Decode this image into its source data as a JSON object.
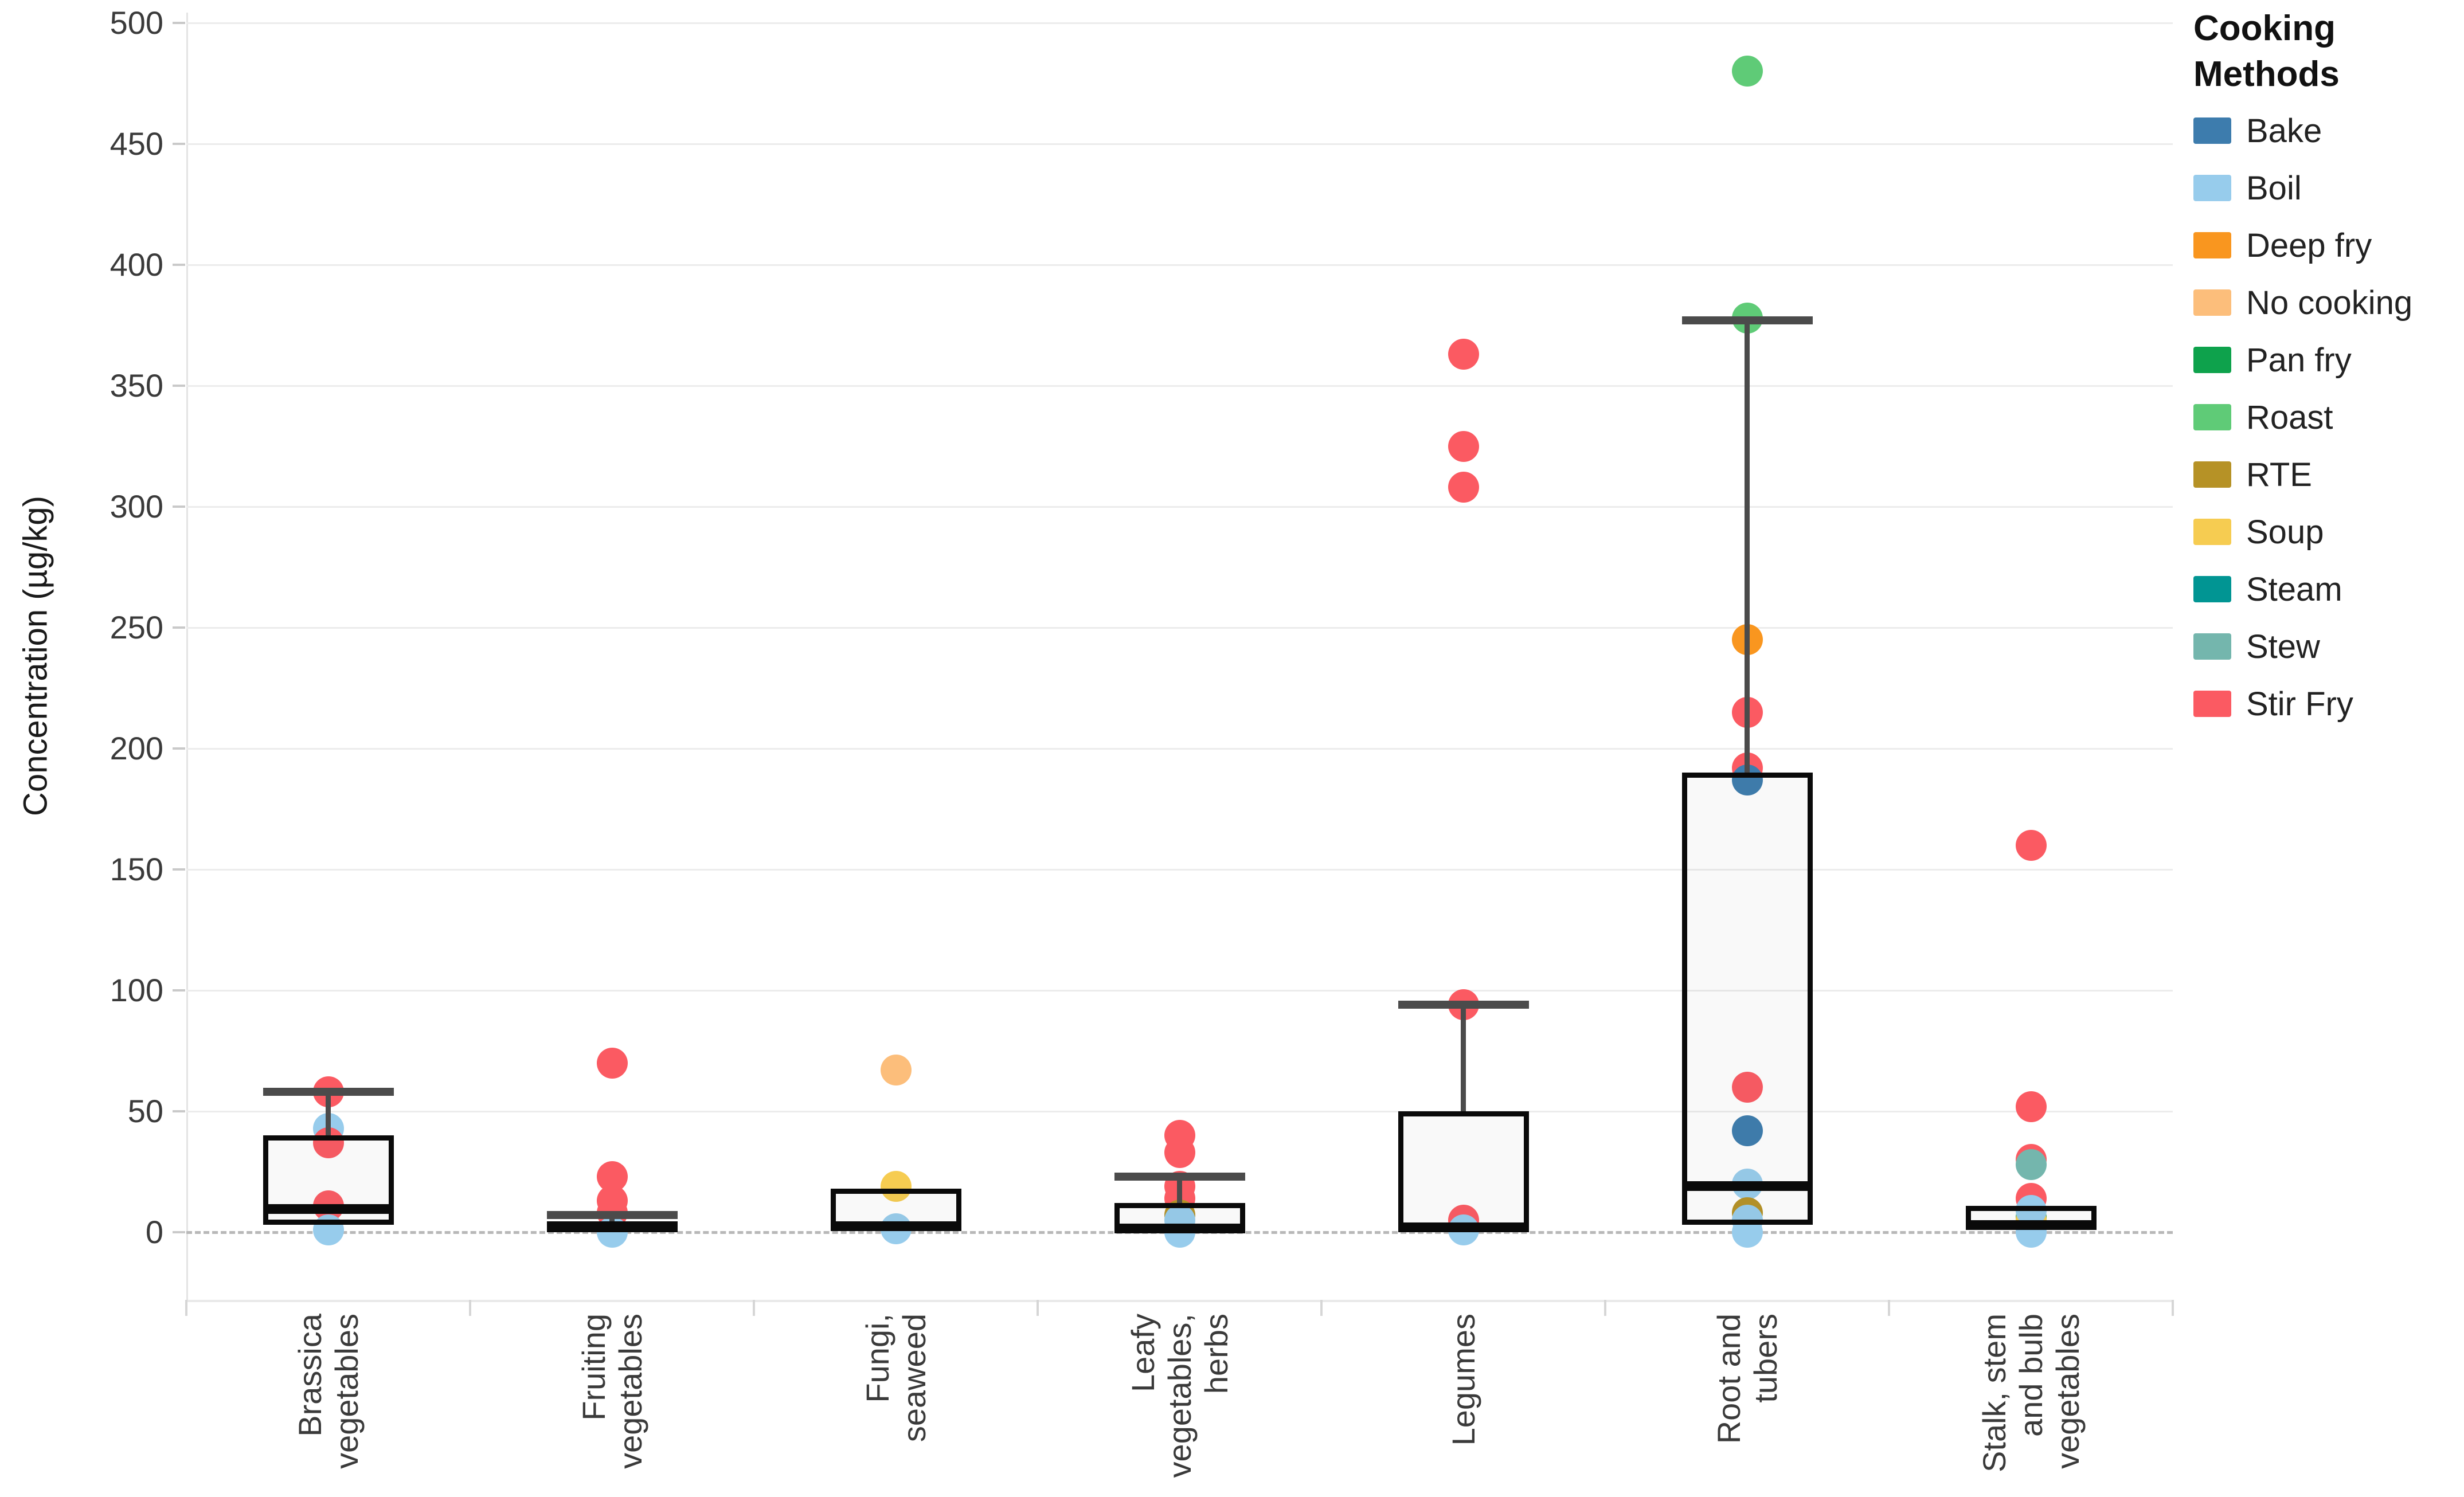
{
  "chart_data": {
    "type": "boxplot_with_points",
    "title": "",
    "ylabel": "Concentration (µg/kg)",
    "xlabel": "",
    "ylim": [
      0,
      500
    ],
    "yticks": [
      0,
      50,
      100,
      150,
      200,
      250,
      300,
      350,
      400,
      450,
      500
    ],
    "grid": "horizontal-light",
    "zero_line_style": "dashed",
    "legend_position": "top-right",
    "legend_title": "Cooking Methods",
    "methods": [
      {
        "id": "bake",
        "label": "Bake",
        "color": "#3D7CAD"
      },
      {
        "id": "boil",
        "label": "Boil",
        "color": "#97CCEC"
      },
      {
        "id": "deep_fry",
        "label": "Deep fry",
        "color": "#F9961F"
      },
      {
        "id": "no_cooking",
        "label": "No cooking",
        "color": "#FCBE7B"
      },
      {
        "id": "pan_fry",
        "label": "Pan fry",
        "color": "#0EA24C"
      },
      {
        "id": "roast",
        "label": "Roast",
        "color": "#5FCB77"
      },
      {
        "id": "rte",
        "label": "RTE",
        "color": "#B69226"
      },
      {
        "id": "soup",
        "label": "Soup",
        "color": "#F6CC51"
      },
      {
        "id": "steam",
        "label": "Steam",
        "color": "#019593"
      },
      {
        "id": "stew",
        "label": "Stew",
        "color": "#74B6AD"
      },
      {
        "id": "stir_fry",
        "label": "Stir Fry",
        "color": "#FB5A62"
      }
    ],
    "categories": [
      {
        "label": "Brassica vegetables",
        "label_lines": [
          "Brassica",
          "vegetables"
        ],
        "box": {
          "q1": 3,
          "median": 9.5,
          "q3": 40,
          "whisker_high": 58,
          "whisker_low": null
        },
        "points": [
          {
            "m": "stir_fry",
            "v": 58
          },
          {
            "m": "boil",
            "v": 43
          },
          {
            "m": "stir_fry",
            "v": 37
          },
          {
            "m": "stir_fry",
            "v": 11
          },
          {
            "m": "boil",
            "v": 1
          }
        ]
      },
      {
        "label": "Fruiting vegetables",
        "label_lines": [
          "Fruiting",
          "vegetables"
        ],
        "box": {
          "q1": 0.5,
          "median": 2,
          "q3": 4.5,
          "whisker_high": 7,
          "whisker_low": null
        },
        "points": [
          {
            "m": "stir_fry",
            "v": 70
          },
          {
            "m": "stir_fry",
            "v": 23
          },
          {
            "m": "stir_fry",
            "v": 13
          },
          {
            "m": "stir_fry",
            "v": 8
          },
          {
            "m": "boil",
            "v": 0
          }
        ]
      },
      {
        "label": "Fungi, seaweed",
        "label_lines": [
          "Fungi,",
          "seaweed"
        ],
        "box": {
          "q1": 1,
          "median": 2.5,
          "q3": 18,
          "whisker_high": null,
          "whisker_low": null
        },
        "points": [
          {
            "m": "no_cooking",
            "v": 67
          },
          {
            "m": "soup",
            "v": 19
          },
          {
            "m": "boil",
            "v": 1.5
          }
        ]
      },
      {
        "label": "Leafy vegetables, herbs",
        "label_lines": [
          "Leafy",
          "vegetables,",
          "herbs"
        ],
        "box": {
          "q1": 0.5,
          "median": 1.5,
          "q3": 12,
          "whisker_high": 23,
          "whisker_low": null
        },
        "points": [
          {
            "m": "stir_fry",
            "v": 40
          },
          {
            "m": "stir_fry",
            "v": 33
          },
          {
            "m": "stir_fry",
            "v": 19
          },
          {
            "m": "stir_fry",
            "v": 14
          },
          {
            "m": "rte",
            "v": 7
          },
          {
            "m": "boil",
            "v": 5
          },
          {
            "m": "boil",
            "v": 0
          }
        ]
      },
      {
        "label": "Legumes",
        "label_lines": [
          "Legumes"
        ],
        "box": {
          "q1": 1,
          "median": 2,
          "q3": 50,
          "whisker_high": 94,
          "whisker_low": null
        },
        "points": [
          {
            "m": "stir_fry",
            "v": 363
          },
          {
            "m": "stir_fry",
            "v": 325
          },
          {
            "m": "stir_fry",
            "v": 308
          },
          {
            "m": "stir_fry",
            "v": 94
          },
          {
            "m": "stir_fry",
            "v": 5
          },
          {
            "m": "boil",
            "v": 1
          }
        ]
      },
      {
        "label": "Root and tubers",
        "label_lines": [
          "Root and",
          "tubers"
        ],
        "box": {
          "q1": 3,
          "median": 19,
          "q3": 190,
          "whisker_high": 377,
          "whisker_low": null
        },
        "points": [
          {
            "m": "roast",
            "v": 480
          },
          {
            "m": "roast",
            "v": 378
          },
          {
            "m": "deep_fry",
            "v": 245
          },
          {
            "m": "stir_fry",
            "v": 215
          },
          {
            "m": "stir_fry",
            "v": 192
          },
          {
            "m": "bake",
            "v": 187
          },
          {
            "m": "stir_fry",
            "v": 60
          },
          {
            "m": "bake",
            "v": 42
          },
          {
            "m": "boil",
            "v": 20
          },
          {
            "m": "rte",
            "v": 8
          },
          {
            "m": "boil",
            "v": 5
          },
          {
            "m": "boil",
            "v": 0
          }
        ]
      },
      {
        "label": "Stalk, stem and bulb vegetables",
        "label_lines": [
          "Stalk, stem",
          "and bulb",
          "vegetables"
        ],
        "box": {
          "q1": 1,
          "median": 3,
          "q3": 11,
          "whisker_high": null,
          "whisker_low": null
        },
        "points": [
          {
            "m": "stir_fry",
            "v": 160
          },
          {
            "m": "stir_fry",
            "v": 52
          },
          {
            "m": "stir_fry",
            "v": 30
          },
          {
            "m": "stew",
            "v": 28
          },
          {
            "m": "stir_fry",
            "v": 14
          },
          {
            "m": "pan_fry",
            "v": 6
          },
          {
            "m": "soup",
            "v": 5
          },
          {
            "m": "boil",
            "v": 9
          },
          {
            "m": "boil",
            "v": 0
          }
        ]
      }
    ]
  }
}
